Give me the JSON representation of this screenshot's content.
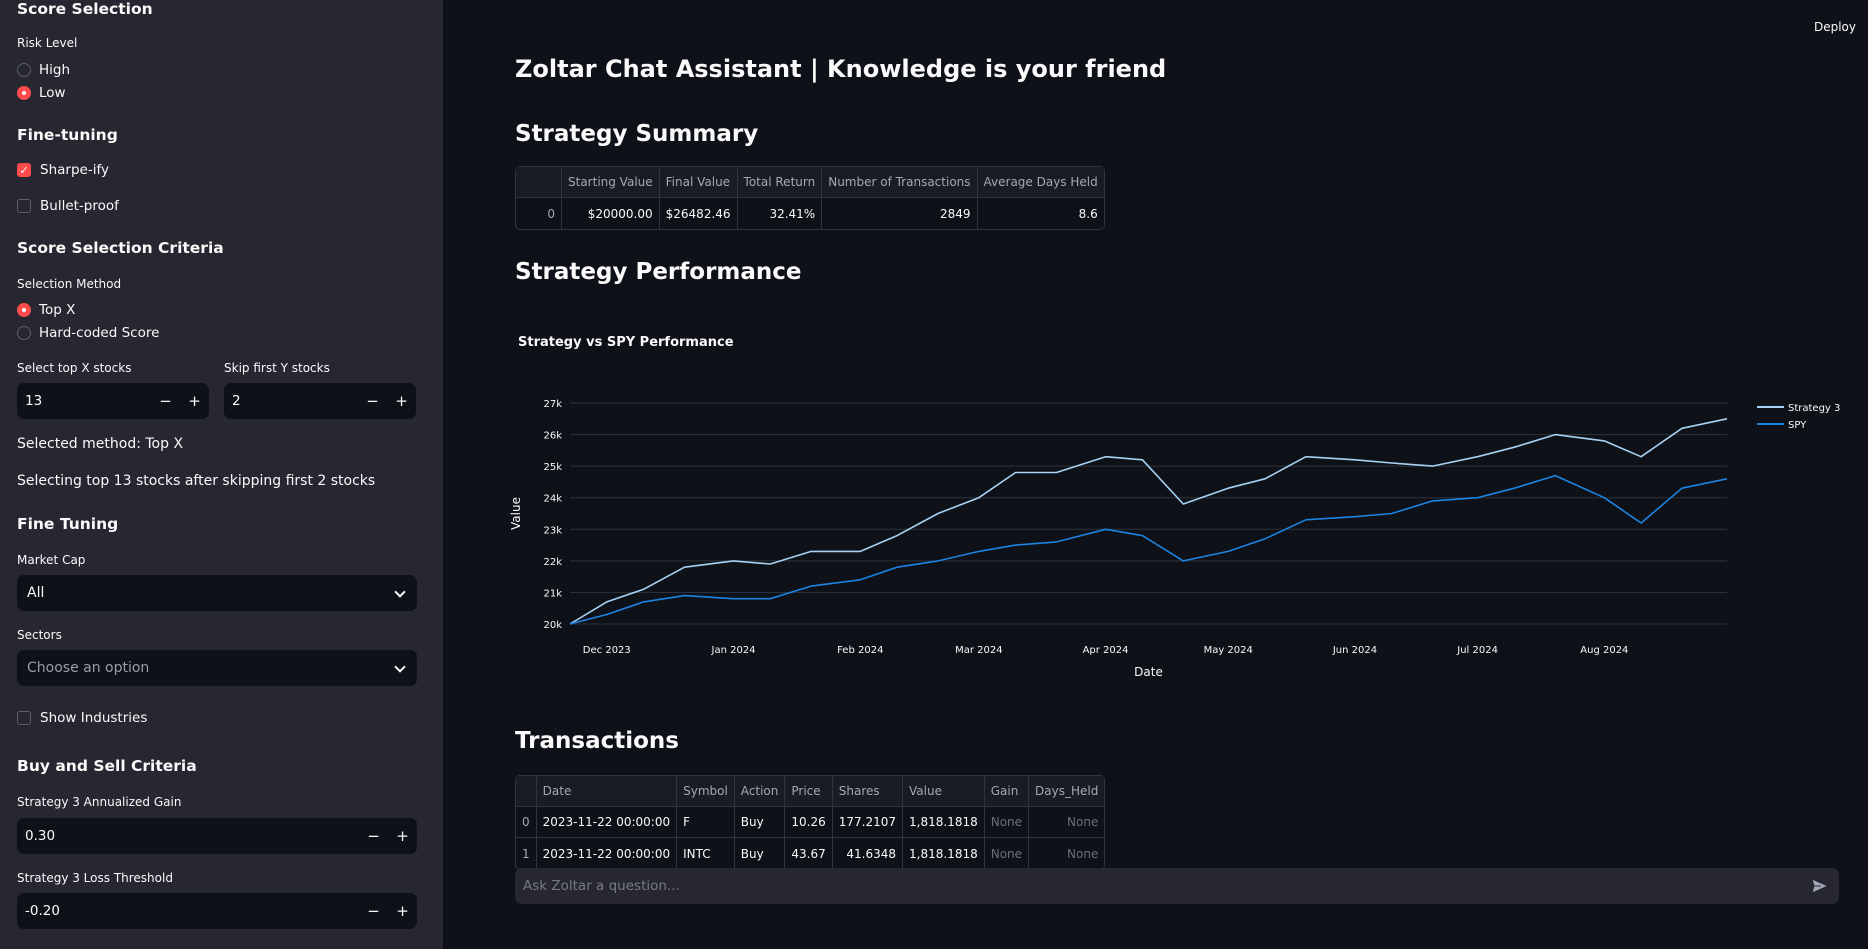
{
  "app": {
    "title": "Zoltar Chat Assistant | Knowledge is your friend",
    "deploy": "Deploy"
  },
  "sidebar": {
    "score_selection": {
      "heading": "Score Selection",
      "risk_label": "Risk Level",
      "risk_options": [
        "High",
        "Low"
      ],
      "risk_selected": "Low"
    },
    "fine_tuning": {
      "heading": "Fine-tuning",
      "sharpeify": "Sharpe-ify",
      "sharpeify_checked": true,
      "bulletproof": "Bullet-proof",
      "bulletproof_checked": false
    },
    "criteria": {
      "heading": "Score Selection Criteria",
      "method_label": "Selection Method",
      "methods": [
        "Top X",
        "Hard-coded Score"
      ],
      "method_selected": "Top X",
      "top_x_label": "Select top X stocks",
      "top_x_value": "13",
      "skip_y_label": "Skip first Y stocks",
      "skip_y_value": "2",
      "selected_method_text": "Selected method: Top X",
      "selecting_text": "Selecting top 13 stocks after skipping first 2 stocks"
    },
    "fine_tuning2": {
      "heading": "Fine Tuning",
      "market_cap_label": "Market Cap",
      "market_cap_value": "All",
      "sectors_label": "Sectors",
      "sectors_placeholder": "Choose an option",
      "show_industries": "Show Industries",
      "show_industries_checked": false
    },
    "buy_sell": {
      "heading": "Buy and Sell Criteria",
      "gain_label": "Strategy 3 Annualized Gain",
      "gain_value": "0.30",
      "loss_label": "Strategy 3 Loss Threshold",
      "loss_value": "-0.20"
    }
  },
  "summary": {
    "heading": "Strategy Summary",
    "columns": [
      "",
      "Starting Value",
      "Final Value",
      "Total Return",
      "Number of Transactions",
      "Average Days Held"
    ],
    "rows": [
      [
        "0",
        "$20000.00",
        "$26482.46",
        "32.41%",
        "2849",
        "8.6"
      ]
    ]
  },
  "performance": {
    "heading": "Strategy Performance"
  },
  "chart_data": {
    "type": "line",
    "title": "Strategy vs SPY Performance",
    "xlabel": "Date",
    "ylabel": "Value",
    "x_ticks": [
      "Dec 2023",
      "Jan 2024",
      "Feb 2024",
      "Mar 2024",
      "Apr 2024",
      "May 2024",
      "Jun 2024",
      "Jul 2024",
      "Aug 2024"
    ],
    "y_ticks": [
      "20k",
      "21k",
      "22k",
      "23k",
      "24k",
      "25k",
      "26k",
      "27k"
    ],
    "ylim": [
      20000,
      27000
    ],
    "legend_position": "right",
    "x": [
      "2023-11-22",
      "2023-12-01",
      "2023-12-10",
      "2023-12-20",
      "2024-01-01",
      "2024-01-10",
      "2024-01-20",
      "2024-02-01",
      "2024-02-10",
      "2024-02-20",
      "2024-03-01",
      "2024-03-10",
      "2024-03-20",
      "2024-04-01",
      "2024-04-10",
      "2024-04-20",
      "2024-05-01",
      "2024-05-10",
      "2024-05-20",
      "2024-06-01",
      "2024-06-10",
      "2024-06-20",
      "2024-07-01",
      "2024-07-10",
      "2024-07-20",
      "2024-08-01",
      "2024-08-10",
      "2024-08-20",
      "2024-08-31"
    ],
    "series": [
      {
        "name": "Strategy 3",
        "color": "#a8d2f5",
        "values": [
          20000,
          20700,
          21100,
          21800,
          22000,
          21900,
          22300,
          22300,
          22800,
          23500,
          24000,
          24800,
          24800,
          25300,
          25200,
          23800,
          24300,
          24600,
          25300,
          25200,
          25100,
          25000,
          25300,
          25600,
          26000,
          25800,
          25300,
          26200,
          26500
        ]
      },
      {
        "name": "SPY",
        "color": "#1c83e1",
        "values": [
          20000,
          20300,
          20700,
          20900,
          20800,
          20800,
          21200,
          21400,
          21800,
          22000,
          22300,
          22500,
          22600,
          23000,
          22800,
          22000,
          22300,
          22700,
          23300,
          23400,
          23500,
          23900,
          24000,
          24300,
          24700,
          24000,
          23200,
          24300,
          24600
        ]
      }
    ]
  },
  "transactions": {
    "heading": "Transactions",
    "columns": [
      "",
      "Date",
      "Symbol",
      "Action",
      "Price",
      "Shares",
      "Value",
      "Gain",
      "Days_Held"
    ],
    "rows": [
      [
        "0",
        "2023-11-22 00:00:00",
        "F",
        "Buy",
        "10.26",
        "177.2107",
        "1,818.1818",
        "None",
        "None"
      ],
      [
        "1",
        "2023-11-22 00:00:00",
        "INTC",
        "Buy",
        "43.67",
        "41.6348",
        "1,818.1818",
        "None",
        "None"
      ]
    ]
  },
  "chat": {
    "placeholder": "Ask Zoltar a question..."
  }
}
